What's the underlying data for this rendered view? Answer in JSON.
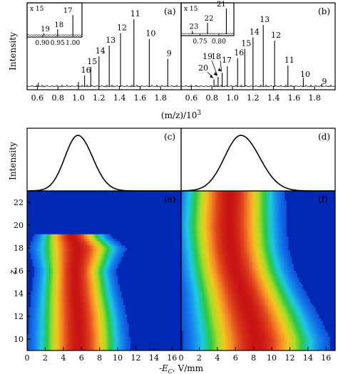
{
  "chart_data": [
    {
      "id": "a",
      "type": "line",
      "panel_label": "(a)",
      "ylabel": "Intensity",
      "xlim": [
        0.5,
        2.0
      ],
      "peaks": [
        {
          "x": 1.87,
          "y": 0.34,
          "label": "9"
        },
        {
          "x": 1.69,
          "y": 0.58,
          "label": "10"
        },
        {
          "x": 1.54,
          "y": 0.82,
          "label": "11"
        },
        {
          "x": 1.41,
          "y": 0.65,
          "label": "12"
        },
        {
          "x": 1.3,
          "y": 0.5,
          "label": "13"
        },
        {
          "x": 1.2,
          "y": 0.37,
          "label": "14"
        },
        {
          "x": 1.12,
          "y": 0.24,
          "label": "15"
        },
        {
          "x": 1.06,
          "y": 0.14,
          "label": "16"
        },
        {
          "x": 1.0,
          "y": 0.06,
          "label": ""
        },
        {
          "x": 0.61,
          "y": 0.05,
          "label": ""
        }
      ],
      "inset": {
        "scale_label": "x 15",
        "xlim": [
          0.85,
          1.03
        ],
        "ticks": [
          "0.90",
          "0.95",
          "1.00"
        ],
        "peaks": [
          {
            "x": 1.0,
            "y": 0.72,
            "label": "17"
          },
          {
            "x": 0.95,
            "y": 0.22,
            "label": "18"
          },
          {
            "x": 0.905,
            "y": 0.08,
            "label": "19"
          }
        ]
      }
    },
    {
      "id": "b",
      "type": "line",
      "panel_label": "(b)",
      "xlabel": "(m/z)/10^3",
      "xlim": [
        0.5,
        2.0
      ],
      "xticks": [
        "0.6",
        "0.8",
        "1.0",
        "1.2",
        "1.4",
        "1.6",
        "1.8"
      ],
      "peaks": [
        {
          "x": 1.87,
          "y": 0.04,
          "label": "9"
        },
        {
          "x": 1.69,
          "y": 0.11,
          "label": "10"
        },
        {
          "x": 1.54,
          "y": 0.26,
          "label": "11"
        },
        {
          "x": 1.41,
          "y": 0.56,
          "label": "12"
        },
        {
          "x": 1.3,
          "y": 0.75,
          "label": "13"
        },
        {
          "x": 1.2,
          "y": 0.6,
          "label": "14"
        },
        {
          "x": 1.12,
          "y": 0.46,
          "label": "15"
        },
        {
          "x": 1.05,
          "y": 0.35,
          "label": "16"
        },
        {
          "x": 0.95,
          "y": 0.25,
          "label": "17"
        },
        {
          "x": 0.9,
          "y": 0.17,
          "label": "18"
        },
        {
          "x": 0.86,
          "y": 0.12,
          "label": "19"
        },
        {
          "x": 0.82,
          "y": 0.09,
          "label": "20"
        }
      ],
      "inset": {
        "scale_label": "x 15",
        "xlim": [
          0.7,
          0.84
        ],
        "ticks": [
          "0.75",
          "0.80"
        ],
        "peaks": [
          {
            "x": 0.82,
            "y": 0.95,
            "label": "21"
          },
          {
            "x": 0.77,
            "y": 0.42,
            "label": "22"
          },
          {
            "x": 0.73,
            "y": 0.12,
            "label": "23"
          }
        ]
      }
    },
    {
      "id": "c",
      "type": "line",
      "panel_label": "(c)",
      "ylabel": "Intensity",
      "xlim": [
        0,
        17
      ],
      "peak_center": 5.6,
      "peak_width": 1.5
    },
    {
      "id": "d",
      "type": "line",
      "panel_label": "(d)",
      "xlim": [
        0,
        17
      ],
      "peak_center": 6.6,
      "peak_width": 1.9
    },
    {
      "id": "e",
      "type": "heatmap",
      "panel_label": "(e)",
      "ylabel": "z",
      "xlim": [
        0,
        17
      ],
      "ylim": [
        9,
        23
      ],
      "yticks": [
        "10",
        "12",
        "14",
        "16",
        "18",
        "20",
        "22"
      ],
      "xticks": [
        "0",
        "2",
        "4",
        "6",
        "8",
        "10",
        "12",
        "14",
        "16"
      ],
      "ridge": [
        {
          "z": 10,
          "center": 5.7,
          "width": 2.5
        },
        {
          "z": 12,
          "center": 5.6,
          "width": 2.4
        },
        {
          "z": 14,
          "center": 5.4,
          "width": 2.2
        },
        {
          "z": 16,
          "center": 5.3,
          "width": 2.0
        },
        {
          "z": 18,
          "center": 5.6,
          "width": 2.4
        },
        {
          "z": 19,
          "center": 5.0,
          "width": 1.9
        }
      ],
      "cutoff_z": 19.2
    },
    {
      "id": "f",
      "type": "heatmap",
      "panel_label": "(f)",
      "xlim": [
        0,
        17
      ],
      "ylim": [
        9,
        23
      ],
      "xticks": [
        "0",
        "2",
        "4",
        "6",
        "8",
        "10",
        "12",
        "14",
        "16"
      ],
      "ridge": [
        {
          "z": 10,
          "center": 8.3,
          "width": 3.6
        },
        {
          "z": 12,
          "center": 7.6,
          "width": 3.4
        },
        {
          "z": 14,
          "center": 6.8,
          "width": 3.1
        },
        {
          "z": 16,
          "center": 6.0,
          "width": 2.9
        },
        {
          "z": 18,
          "center": 5.5,
          "width": 2.8
        },
        {
          "z": 20,
          "center": 5.3,
          "width": 2.8
        },
        {
          "z": 23,
          "center": 5.4,
          "width": 2.7
        }
      ]
    }
  ],
  "axis_texts": {
    "mz_label_main": "(m/z)/10",
    "mz_label_sup": "3",
    "e_label": "-E",
    "e_sub": "C",
    "e_unit": ", V/mm"
  }
}
